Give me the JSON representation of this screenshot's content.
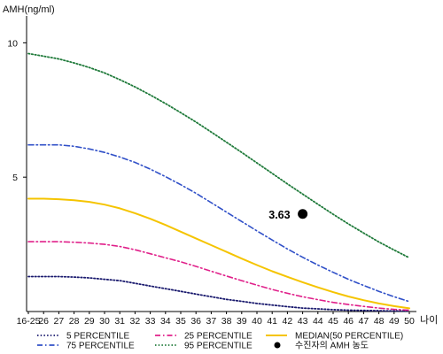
{
  "chart_data": {
    "type": "line",
    "ylabel": "AMH(ng/ml)",
    "xlabel": "나이",
    "x_tick_labels": [
      "16-25",
      "26",
      "27",
      "28",
      "29",
      "30",
      "31",
      "32",
      "33",
      "34",
      "35",
      "36",
      "37",
      "38",
      "39",
      "40",
      "41",
      "42",
      "43",
      "44",
      "45",
      "46",
      "47",
      "48",
      "49",
      "50"
    ],
    "y_ticks": [
      10,
      5
    ],
    "ylim": [
      0,
      11
    ],
    "grid": false,
    "legend_position": "bottom",
    "series": [
      {
        "name": "5 PERCENTILE",
        "color": "#1a1a6e",
        "dash": "dotted",
        "values": [
          1.3,
          1.3,
          1.3,
          1.28,
          1.25,
          1.2,
          1.15,
          1.05,
          0.95,
          0.85,
          0.75,
          0.65,
          0.55,
          0.45,
          0.38,
          0.3,
          0.24,
          0.18,
          0.13,
          0.1,
          0.07,
          0.05,
          0.04,
          0.03,
          0.02,
          0.02
        ]
      },
      {
        "name": "25 PERCENTILE",
        "color": "#e0208a",
        "dash": "dashdot",
        "values": [
          2.6,
          2.6,
          2.6,
          2.58,
          2.55,
          2.5,
          2.42,
          2.3,
          2.15,
          2.0,
          1.85,
          1.68,
          1.5,
          1.32,
          1.15,
          0.98,
          0.82,
          0.68,
          0.55,
          0.44,
          0.34,
          0.26,
          0.19,
          0.13,
          0.08,
          0.05
        ]
      },
      {
        "name": "MEDIAN(50 PERCENTILE)",
        "color": "#f5c400",
        "dash": "solid",
        "values": [
          4.2,
          4.2,
          4.18,
          4.14,
          4.08,
          3.98,
          3.84,
          3.66,
          3.45,
          3.22,
          2.97,
          2.72,
          2.47,
          2.22,
          1.97,
          1.73,
          1.5,
          1.29,
          1.09,
          0.9,
          0.72,
          0.56,
          0.42,
          0.3,
          0.2,
          0.12
        ]
      },
      {
        "name": "75 PERCENTILE",
        "color": "#3050c8",
        "dash": "dashdot",
        "values": [
          6.2,
          6.2,
          6.2,
          6.15,
          6.05,
          5.92,
          5.75,
          5.55,
          5.3,
          5.02,
          4.72,
          4.4,
          4.05,
          3.7,
          3.35,
          3.0,
          2.66,
          2.33,
          2.02,
          1.73,
          1.46,
          1.2,
          0.97,
          0.75,
          0.55,
          0.37
        ]
      },
      {
        "name": "95 PERCENTILE",
        "color": "#1f7a3a",
        "dash": "dotted",
        "values": [
          9.6,
          9.5,
          9.4,
          9.25,
          9.08,
          8.88,
          8.63,
          8.36,
          8.06,
          7.74,
          7.4,
          7.05,
          6.68,
          6.3,
          5.92,
          5.53,
          5.14,
          4.75,
          4.37,
          3.99,
          3.62,
          3.26,
          2.92,
          2.59,
          2.29,
          2.0
        ]
      }
    ],
    "highlight_point": {
      "legend": "수진자의 AMH 농도",
      "x": "43",
      "y": 3.63,
      "label": "3.63"
    }
  }
}
